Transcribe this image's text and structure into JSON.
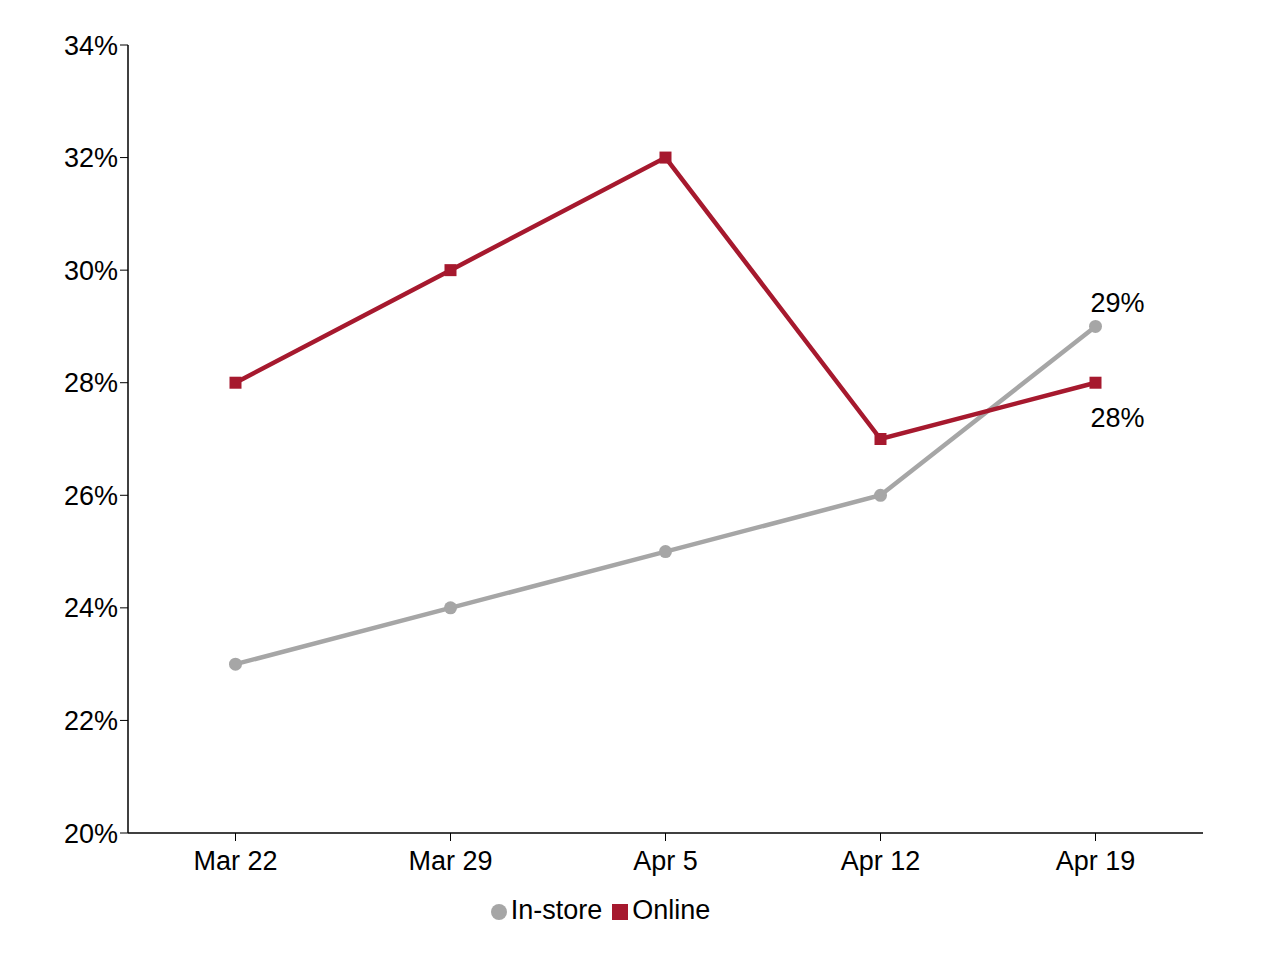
{
  "chart_data": {
    "type": "line",
    "categories": [
      "Mar 22",
      "Mar 29",
      "Apr 5",
      "Apr 12",
      "Apr 19"
    ],
    "series": [
      {
        "name": "In-store",
        "color": "#a6a6a6",
        "marker": "circle",
        "values": [
          23,
          24,
          25,
          26,
          29
        ],
        "value_labels": [
          null,
          null,
          null,
          null,
          "29%"
        ]
      },
      {
        "name": "Online",
        "color": "#a6192e",
        "marker": "square",
        "values": [
          28,
          30,
          32,
          27,
          28
        ],
        "value_labels": [
          null,
          null,
          null,
          null,
          "28%"
        ]
      }
    ],
    "ylim": [
      20,
      34
    ],
    "yticks": [
      {
        "value": 20,
        "label": "20%"
      },
      {
        "value": 22,
        "label": "22%"
      },
      {
        "value": 24,
        "label": "24%"
      },
      {
        "value": 26,
        "label": "26%"
      },
      {
        "value": 28,
        "label": "28%"
      },
      {
        "value": 30,
        "label": "30%"
      },
      {
        "value": 32,
        "label": "32%"
      },
      {
        "value": 34,
        "label": "34%"
      }
    ],
    "grid": false,
    "legend": "bottom"
  }
}
